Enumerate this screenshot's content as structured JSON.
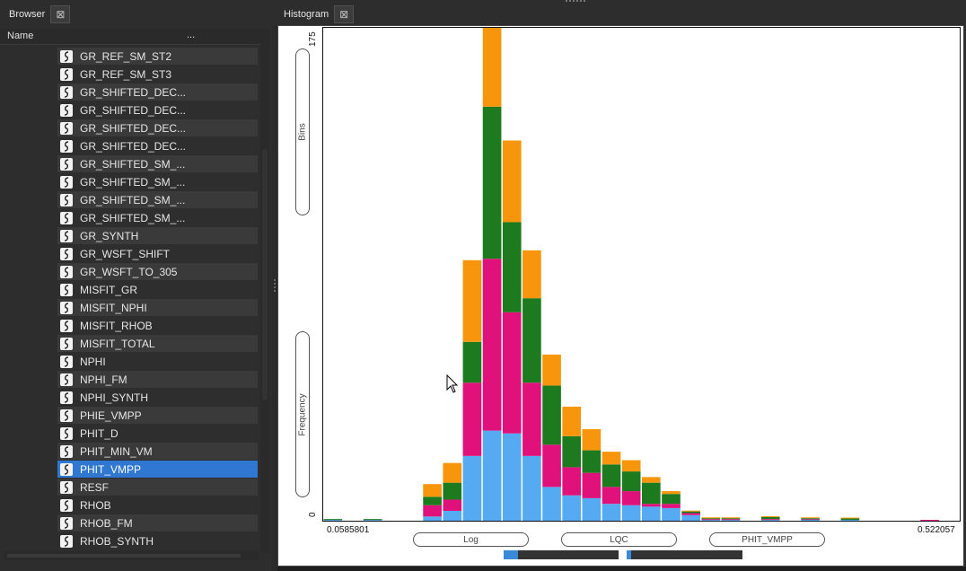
{
  "browser": {
    "title": "Browser",
    "close_icon": "close-icon",
    "column_name": "Name",
    "column_more": "...",
    "items": [
      {
        "label": "GR_REF_SM_ST2",
        "selected": false
      },
      {
        "label": "GR_REF_SM_ST3",
        "selected": false
      },
      {
        "label": "GR_SHIFTED_DEC...",
        "selected": false
      },
      {
        "label": "GR_SHIFTED_DEC...",
        "selected": false
      },
      {
        "label": "GR_SHIFTED_DEC...",
        "selected": false
      },
      {
        "label": "GR_SHIFTED_DEC...",
        "selected": false
      },
      {
        "label": "GR_SHIFTED_SM_...",
        "selected": false
      },
      {
        "label": "GR_SHIFTED_SM_...",
        "selected": false
      },
      {
        "label": "GR_SHIFTED_SM_...",
        "selected": false
      },
      {
        "label": "GR_SHIFTED_SM_...",
        "selected": false
      },
      {
        "label": "GR_SYNTH",
        "selected": false
      },
      {
        "label": "GR_WSFT_SHIFT",
        "selected": false
      },
      {
        "label": "GR_WSFT_TO_305",
        "selected": false
      },
      {
        "label": "MISFIT_GR",
        "selected": false
      },
      {
        "label": "MISFIT_NPHI",
        "selected": false
      },
      {
        "label": "MISFIT_RHOB",
        "selected": false
      },
      {
        "label": "MISFIT_TOTAL",
        "selected": false
      },
      {
        "label": "NPHI",
        "selected": false
      },
      {
        "label": "NPHI_FM",
        "selected": false
      },
      {
        "label": "NPHI_SYNTH",
        "selected": false
      },
      {
        "label": "PHIE_VMPP",
        "selected": false
      },
      {
        "label": "PHIT_D",
        "selected": false
      },
      {
        "label": "PHIT_MIN_VM",
        "selected": false
      },
      {
        "label": "PHIT_VMPP",
        "selected": true
      },
      {
        "label": "RESF",
        "selected": false
      },
      {
        "label": "RHOB",
        "selected": false
      },
      {
        "label": "RHOB_FM",
        "selected": false
      },
      {
        "label": "RHOB_SYNTH",
        "selected": false
      }
    ]
  },
  "histogram": {
    "title": "Histogram",
    "close_icon": "close-icon",
    "bins_button": "Bins",
    "frequency_button": "Frequency",
    "bottom_buttons": [
      "Log",
      "LQC",
      "PHIT_VMPP"
    ],
    "colors": {
      "blue": "#55aaf2",
      "magenta": "#e0117a",
      "green": "#1e7a1e",
      "orange": "#f7960d",
      "accent": "#2f77d1"
    }
  },
  "chart_data": {
    "type": "bar",
    "stacked": true,
    "y_tick_labels": [
      "0",
      "175"
    ],
    "x_tick_labels": [
      "0.0585801",
      "0.522057"
    ],
    "ylim": [
      0,
      175
    ],
    "xlim": [
      0.0585801,
      0.522057
    ],
    "series_colors": [
      "#55aaf2",
      "#e0117a",
      "#1e7a1e",
      "#f7960d"
    ],
    "bin_count": 32,
    "series": [
      {
        "color": "#55aaf2",
        "values": [
          0.3,
          0,
          0.3,
          0,
          0,
          1.5,
          3.5,
          23,
          32,
          31,
          23,
          12,
          9,
          8,
          6,
          5.5,
          5,
          4.5,
          2,
          0.3,
          0.3,
          0,
          0.3,
          0,
          0.5,
          0,
          0.3,
          0,
          0,
          0,
          0,
          0
        ]
      },
      {
        "color": "#e0117a",
        "values": [
          0,
          0,
          0,
          0,
          0,
          4,
          4,
          26,
          61,
          43,
          26,
          15,
          10,
          9,
          6,
          5,
          1,
          1.5,
          0.7,
          0.3,
          0.3,
          0,
          0.3,
          0,
          0.2,
          0,
          0,
          0,
          0,
          0,
          0.3,
          0
        ]
      },
      {
        "color": "#1e7a1e",
        "values": [
          0.3,
          0,
          0.3,
          0,
          0,
          3,
          6,
          14.5,
          54,
          32,
          30,
          21,
          11,
          8,
          8,
          7,
          7.5,
          3.5,
          0.6,
          0.3,
          0.3,
          0,
          0.7,
          0,
          0.2,
          0,
          0.5,
          0,
          0,
          0,
          0,
          0
        ]
      },
      {
        "color": "#f7960d",
        "values": [
          0,
          0,
          0,
          0,
          0,
          4.5,
          7,
          29,
          28,
          29,
          17,
          11,
          10.5,
          7.5,
          4.5,
          4,
          2,
          1,
          0.3,
          0.3,
          0.3,
          0,
          0.3,
          0,
          0.3,
          0,
          0.3,
          0,
          0,
          0,
          0,
          0
        ]
      }
    ],
    "legend": "none",
    "grid": false
  }
}
